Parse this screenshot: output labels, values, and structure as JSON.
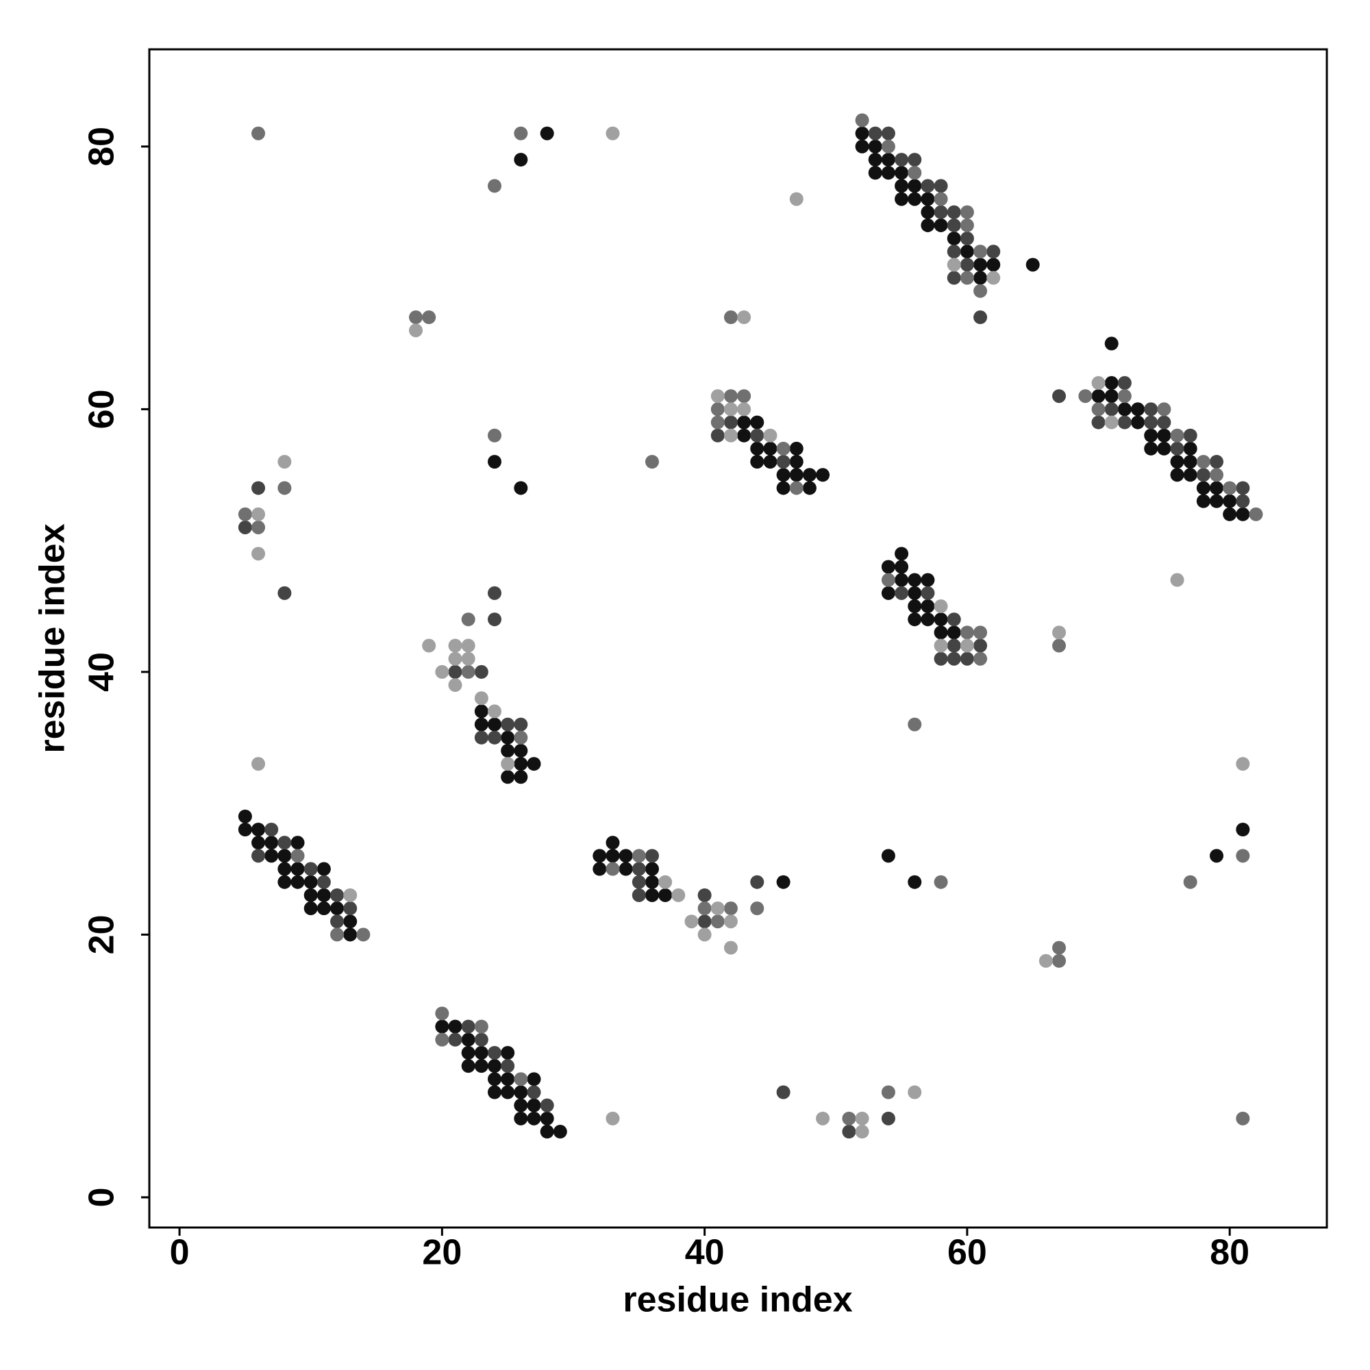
{
  "chart_data": {
    "type": "scatter",
    "xlabel": "residue index",
    "ylabel": "residue index",
    "xlim": [
      -2.3,
      87.4
    ],
    "ylim": [
      -2.3,
      87.4
    ],
    "xticks": [
      0,
      20,
      40,
      60,
      80
    ],
    "yticks": [
      0,
      20,
      40,
      60,
      80
    ],
    "grid": false,
    "series": [
      {
        "color": "#111111",
        "x": [
          28,
          26,
          52,
          52,
          53,
          53,
          54,
          53,
          54,
          55,
          55,
          56,
          55,
          56,
          57,
          57,
          57,
          58,
          59,
          60,
          61,
          62,
          65,
          61,
          71,
          43,
          44,
          43,
          44,
          45,
          47,
          44,
          45,
          47,
          46,
          47,
          48,
          49,
          46,
          48,
          71,
          70,
          71,
          72,
          73,
          73,
          74,
          75,
          74,
          75,
          77,
          76,
          77,
          76,
          77,
          78,
          79,
          78,
          79,
          80,
          80,
          81,
          24,
          26,
          55,
          54,
          55,
          55,
          56,
          57,
          54,
          56,
          56,
          57,
          56,
          57,
          58,
          58,
          59,
          23,
          23,
          24,
          25,
          25,
          26,
          26,
          27,
          25,
          26,
          5,
          5,
          6,
          6,
          7,
          9,
          7,
          8,
          8,
          9,
          11,
          8,
          9,
          10,
          10,
          11,
          10,
          11,
          12,
          13,
          13,
          33,
          32,
          33,
          34,
          32,
          34,
          36,
          36,
          36,
          37,
          46,
          54,
          56,
          79,
          81,
          20,
          21,
          22,
          22,
          23,
          25,
          22,
          23,
          24,
          24,
          25,
          27,
          24,
          25,
          26,
          26,
          27,
          26,
          27,
          28,
          28,
          29
        ],
        "values": [
          81,
          79,
          81,
          80,
          80,
          79,
          79,
          78,
          78,
          78,
          77,
          77,
          76,
          76,
          76,
          75,
          74,
          74,
          73,
          72,
          71,
          71,
          71,
          70,
          65,
          59,
          59,
          58,
          57,
          57,
          57,
          56,
          56,
          56,
          55,
          55,
          55,
          55,
          54,
          54,
          62,
          61,
          61,
          60,
          60,
          59,
          58,
          58,
          57,
          57,
          57,
          56,
          56,
          55,
          55,
          54,
          54,
          53,
          53,
          53,
          52,
          52,
          56,
          54,
          49,
          48,
          48,
          47,
          47,
          47,
          46,
          46,
          45,
          45,
          44,
          44,
          44,
          43,
          43,
          37,
          36,
          36,
          35,
          34,
          34,
          33,
          33,
          32,
          32,
          29,
          28,
          28,
          27,
          27,
          27,
          26,
          26,
          25,
          25,
          25,
          24,
          24,
          24,
          23,
          23,
          22,
          22,
          22,
          21,
          20,
          27,
          26,
          26,
          26,
          25,
          25,
          25,
          24,
          23,
          23,
          24,
          26,
          24,
          26,
          28,
          13,
          13,
          12,
          11,
          11,
          11,
          10,
          10,
          10,
          9,
          9,
          9,
          8,
          8,
          8,
          7,
          7,
          6,
          6,
          6,
          5,
          5
        ]
      },
      {
        "color": "#444444",
        "x": [
          53,
          54,
          55,
          56,
          57,
          58,
          58,
          59,
          59,
          60,
          59,
          62,
          60,
          59,
          61,
          42,
          41,
          44,
          46,
          67,
          72,
          71,
          74,
          70,
          72,
          74,
          75,
          77,
          76,
          79,
          78,
          81,
          81,
          6,
          5,
          8,
          24,
          24,
          55,
          57,
          59,
          59,
          61,
          58,
          59,
          60,
          21,
          23,
          25,
          26,
          23,
          24,
          7,
          8,
          6,
          10,
          11,
          12,
          13,
          12,
          36,
          35,
          35,
          35,
          40,
          44,
          40,
          22,
          21,
          23,
          24,
          25,
          27,
          28,
          46,
          51,
          54
        ],
        "values": [
          81,
          81,
          79,
          79,
          77,
          77,
          75,
          75,
          74,
          73,
          72,
          72,
          71,
          70,
          67,
          59,
          58,
          58,
          56,
          61,
          62,
          60,
          60,
          59,
          59,
          59,
          59,
          58,
          57,
          56,
          55,
          54,
          53,
          54,
          51,
          46,
          46,
          44,
          46,
          46,
          44,
          42,
          42,
          41,
          41,
          41,
          40,
          40,
          36,
          36,
          35,
          35,
          28,
          27,
          26,
          25,
          24,
          23,
          22,
          21,
          26,
          25,
          24,
          23,
          23,
          24,
          21,
          13,
          12,
          12,
          11,
          10,
          8,
          7,
          8,
          5,
          6
        ]
      },
      {
        "color": "#707070",
        "x": [
          6,
          26,
          24,
          52,
          54,
          56,
          58,
          60,
          60,
          61,
          60,
          61,
          18,
          19,
          42,
          42,
          43,
          41,
          41,
          46,
          47,
          69,
          72,
          70,
          75,
          76,
          78,
          79,
          80,
          82,
          8,
          5,
          6,
          24,
          36,
          54,
          60,
          61,
          61,
          67,
          22,
          22,
          26,
          56,
          9,
          12,
          14,
          35,
          33,
          40,
          42,
          44,
          41,
          58,
          81,
          77,
          67,
          67,
          20,
          23,
          20,
          26,
          51,
          54,
          81
        ],
        "values": [
          81,
          81,
          77,
          82,
          80,
          78,
          76,
          75,
          74,
          72,
          70,
          69,
          67,
          67,
          67,
          61,
          61,
          60,
          59,
          57,
          54,
          61,
          61,
          60,
          60,
          58,
          56,
          55,
          54,
          52,
          54,
          52,
          51,
          58,
          56,
          47,
          43,
          43,
          41,
          42,
          44,
          40,
          35,
          36,
          26,
          20,
          20,
          26,
          25,
          22,
          22,
          22,
          21,
          24,
          26,
          24,
          18,
          19,
          14,
          13,
          12,
          9,
          6,
          8,
          6
        ]
      },
      {
        "color": "#a0a0a0",
        "x": [
          33,
          47,
          59,
          62,
          18,
          43,
          41,
          42,
          43,
          42,
          45,
          70,
          71,
          8,
          6,
          6,
          58,
          58,
          60,
          76,
          67,
          19,
          21,
          22,
          21,
          22,
          20,
          21,
          23,
          24,
          25,
          6,
          81,
          13,
          37,
          38,
          41,
          39,
          42,
          40,
          42,
          66,
          33,
          49,
          52,
          52,
          56
        ],
        "values": [
          81,
          76,
          71,
          70,
          66,
          67,
          61,
          60,
          60,
          58,
          58,
          62,
          59,
          56,
          52,
          49,
          45,
          42,
          42,
          47,
          43,
          42,
          42,
          42,
          41,
          41,
          40,
          39,
          38,
          37,
          33,
          33,
          33,
          23,
          24,
          23,
          22,
          21,
          21,
          20,
          19,
          18,
          6,
          6,
          6,
          5,
          8
        ]
      }
    ]
  }
}
